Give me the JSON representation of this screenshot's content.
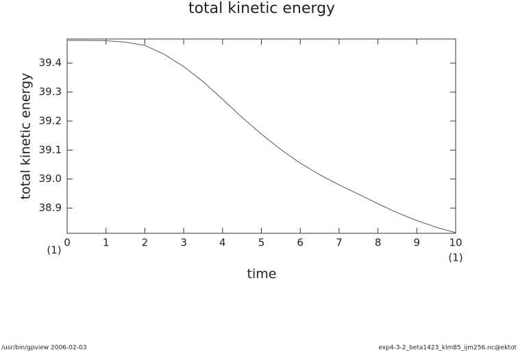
{
  "chart_data": {
    "type": "line",
    "title": "total kinetic energy",
    "x_label": "time",
    "y_label": "total kinetic energy",
    "x": [
      0,
      0.5,
      1,
      1.5,
      2,
      2.5,
      3,
      3.5,
      4,
      4.5,
      5,
      5.5,
      6,
      6.5,
      7,
      7.5,
      8,
      8.5,
      9,
      9.5,
      10
    ],
    "series": [
      {
        "color": "#555555",
        "values": [
          39.478,
          39.478,
          39.477,
          39.472,
          39.461,
          39.43,
          39.388,
          39.336,
          39.275,
          39.213,
          39.155,
          39.102,
          39.055,
          39.015,
          38.98,
          38.948,
          38.915,
          38.884,
          38.857,
          38.834,
          38.815
        ]
      }
    ],
    "xlim": [
      0,
      10
    ],
    "xticks": [
      0,
      1,
      2,
      3,
      4,
      5,
      6,
      7,
      8,
      9,
      10
    ],
    "ylim": [
      38.813,
      39.483
    ],
    "yticks": [
      {
        "value": 38.9,
        "label": "38.9"
      },
      {
        "value": 39.0,
        "label": "39.0"
      },
      {
        "value": 39.1,
        "label": "39.1"
      },
      {
        "value": 39.2,
        "label": "39.2"
      },
      {
        "value": 39.3,
        "label": "39.3"
      },
      {
        "value": 39.4,
        "label": "39.4"
      }
    ],
    "x_scale_left": "(1)",
    "x_scale_right": "(1)",
    "footer_left": "/usr/bin/gpview  2006-02-03",
    "footer_right": "exp4-3-2_beta1423_klm85_ijm256.nc@ektot"
  }
}
